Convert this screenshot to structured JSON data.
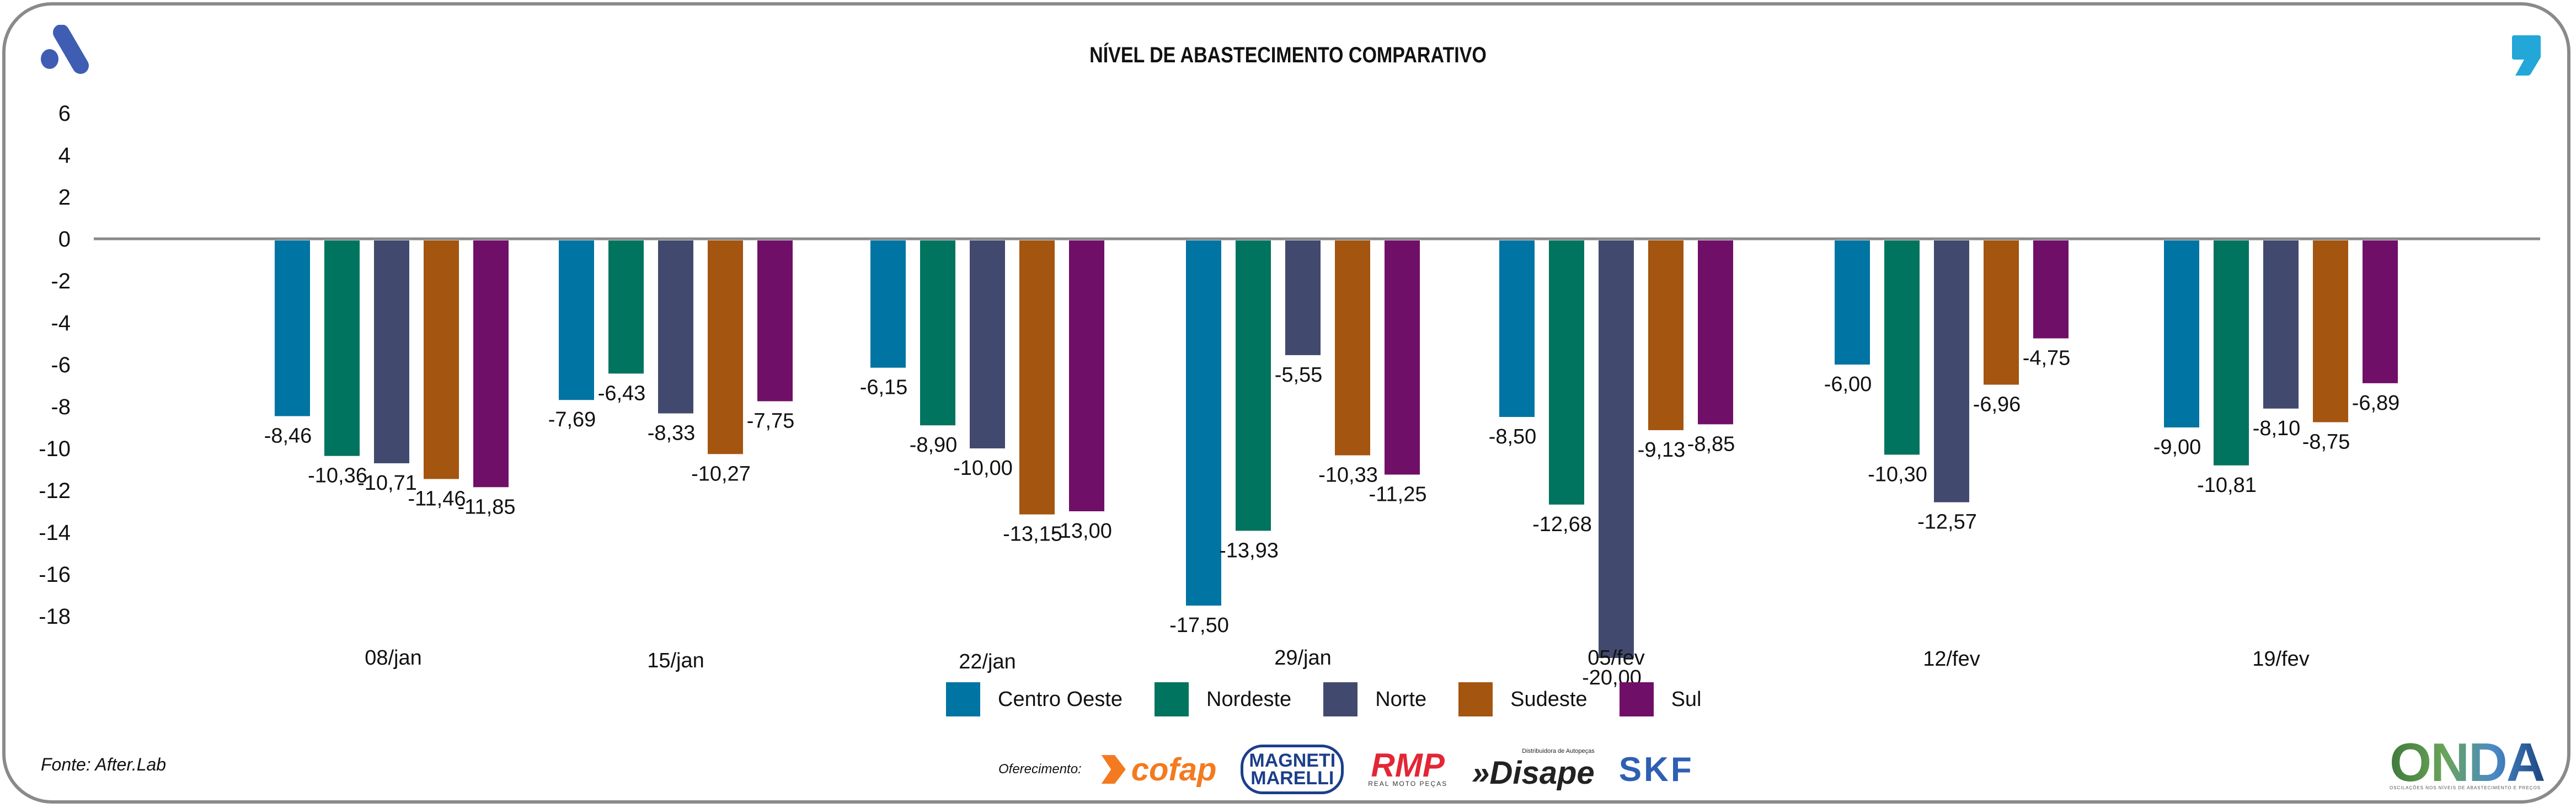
{
  "header": {
    "title": "NÍVEL DE ABASTECIMENTO COMPARATIVO",
    "left_logo_icon": "aftermarket-a-logo-icon",
    "right_logo_icon": "quote-comma-logo-icon"
  },
  "colors": {
    "Centro Oeste": "#0074A2",
    "Nordeste": "#00745E",
    "Norte": "#414A6E",
    "Sudeste": "#A4550F",
    "Sul": "#700F68",
    "axis": "#8A8A8A",
    "logo_a": "#3F5DB3",
    "logo_quote": "#22A7D8"
  },
  "chart_data": {
    "type": "bar",
    "title": "NÍVEL DE ABASTECIMENTO COMPARATIVO",
    "xlabel": "",
    "ylabel": "",
    "ylim": [
      -18,
      6
    ],
    "yticks": [
      6,
      4,
      2,
      0,
      -2,
      -4,
      -6,
      -8,
      -10,
      -12,
      -14,
      -16,
      -18
    ],
    "ytick_labels": [
      "6",
      "4",
      "2",
      "0",
      "-2",
      "-4",
      "-6",
      "-8",
      "-10",
      "-12",
      "-14",
      "-16",
      "-18"
    ],
    "grid": false,
    "legend_position": "bottom-center",
    "categories": [
      "08/jan",
      "15/jan",
      "22/jan",
      "29/jan",
      "05/fev",
      "12/fev",
      "19/fev"
    ],
    "series": [
      {
        "name": "Centro Oeste",
        "values": [
          -8.46,
          -7.69,
          -6.15,
          -17.5,
          -8.5,
          -6.0,
          -9.0
        ],
        "labels": [
          "-8,46",
          "-7,69",
          "-6,15",
          "-17,50",
          "-8,50",
          "-6,00",
          "-9,00"
        ]
      },
      {
        "name": "Nordeste",
        "values": [
          -10.36,
          -6.43,
          -8.9,
          -13.93,
          -12.68,
          -10.3,
          -10.81
        ],
        "labels": [
          "-10,36",
          "-6,43",
          "-8,90",
          "-13,93",
          "-12,68",
          "-10,30",
          "-10,81"
        ]
      },
      {
        "name": "Norte",
        "values": [
          -10.71,
          -8.33,
          -10.0,
          -5.55,
          -20.0,
          -12.57,
          -8.1
        ],
        "labels": [
          "-10,71",
          "-8,33",
          "-10,00",
          "-5,55",
          "-20,00",
          "-12,57",
          "-8,10"
        ]
      },
      {
        "name": "Sudeste",
        "values": [
          -11.46,
          -10.27,
          -13.15,
          -10.33,
          -9.13,
          -6.96,
          -8.75
        ],
        "labels": [
          "-11,46",
          "-10,27",
          "-13,15",
          "-10,33",
          "-9,13",
          "-6,96",
          "-8,75"
        ]
      },
      {
        "name": "Sul",
        "values": [
          -11.85,
          -7.75,
          -13.0,
          -11.25,
          -8.85,
          -4.75,
          -6.89
        ],
        "labels": [
          "-11,85",
          "-7,75",
          "-13,00",
          "-11,25",
          "-8,85",
          "-4,75",
          "-6,89"
        ]
      }
    ]
  },
  "legend": [
    {
      "label": "Centro Oeste"
    },
    {
      "label": "Nordeste"
    },
    {
      "label": "Norte"
    },
    {
      "label": "Sudeste"
    },
    {
      "label": "Sul"
    }
  ],
  "footer": {
    "source": "Fonte: After.Lab",
    "sponsor_label": "Oferecimento:",
    "sponsors": {
      "cofap": "cofap",
      "magneti_line1": "MAGNETI",
      "magneti_line2": "MARELLI",
      "rmp": "RMP",
      "rmp_sub": "REAL MOTO PEÇAS",
      "disape_sub": "Distribuidora de Autopeças",
      "disape": "»Disape",
      "skf": "SKF"
    },
    "onda": "ONDA",
    "onda_sub": "OSCILAÇÕES NOS NÍVEIS DE ABASTECIMENTO E PREÇOS"
  }
}
